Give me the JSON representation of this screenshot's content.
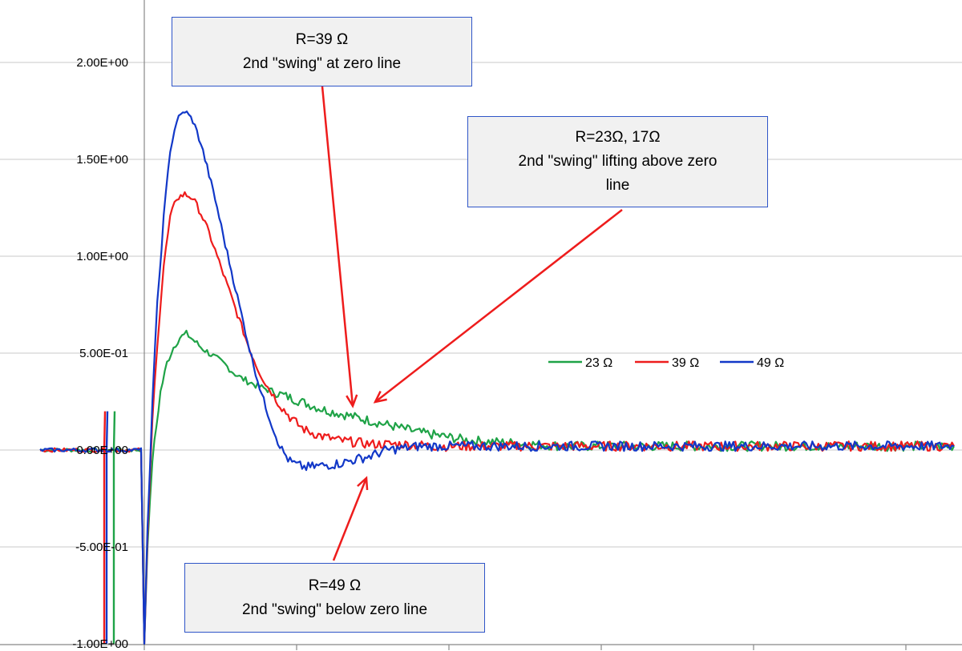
{
  "chart_data": {
    "type": "line",
    "title": "",
    "xlabel": "",
    "ylabel": "",
    "ylim": [
      -1.0,
      2.3
    ],
    "y_ticks": [
      "2.00E+00",
      "1.50E+00",
      "1.00E+00",
      "5.00E-01",
      "0.00E+00",
      "-5.00E-01",
      "-1.00E+00"
    ],
    "y_tick_values": [
      2.0,
      1.5,
      1.0,
      0.5,
      0.0,
      -0.5,
      -1.0
    ],
    "grid": "horizontal",
    "legend_position": "right",
    "colors": {
      "green": "#1fa347",
      "red": "#ee1c1c",
      "blue": "#1238c8",
      "arrow": "#ee1c1c",
      "box_border": "#2f55c8"
    },
    "series": [
      {
        "name": "23 Ω",
        "color": "#1fa347",
        "x": [
          0,
          2,
          5,
          10,
          14,
          18,
          22,
          26,
          30,
          35,
          40,
          45,
          50,
          55,
          60,
          65,
          70,
          80,
          90,
          100,
          110,
          120,
          130,
          140,
          150,
          160,
          170,
          185,
          200,
          220,
          240,
          260,
          290,
          320,
          360,
          400,
          450,
          500
        ],
        "y": [
          -1.0,
          -0.5,
          -0.05,
          0.3,
          0.45,
          0.53,
          0.58,
          0.6,
          0.57,
          0.53,
          0.5,
          0.47,
          0.44,
          0.4,
          0.37,
          0.35,
          0.33,
          0.3,
          0.27,
          0.24,
          0.21,
          0.19,
          0.17,
          0.15,
          0.13,
          0.11,
          0.09,
          0.07,
          0.05,
          0.04,
          0.03,
          0.02,
          0.02,
          0.02,
          0.02,
          0.02,
          0.02,
          0.02
        ]
      },
      {
        "name": "39 Ω",
        "color": "#ee1c1c",
        "x": [
          0,
          2,
          5,
          8,
          12,
          16,
          20,
          25,
          30,
          35,
          40,
          45,
          50,
          55,
          60,
          65,
          70,
          75,
          80,
          85,
          90,
          95,
          100,
          110,
          120,
          130,
          140,
          160,
          180,
          200,
          240,
          280,
          320,
          360,
          400,
          450,
          500
        ],
        "y": [
          -1.0,
          -0.45,
          0.15,
          0.55,
          0.95,
          1.2,
          1.3,
          1.32,
          1.3,
          1.22,
          1.12,
          1.0,
          0.88,
          0.76,
          0.64,
          0.52,
          0.42,
          0.34,
          0.28,
          0.22,
          0.17,
          0.13,
          0.1,
          0.07,
          0.05,
          0.04,
          0.03,
          0.03,
          0.02,
          0.02,
          0.02,
          0.02,
          0.02,
          0.02,
          0.02,
          0.02,
          0.02
        ]
      },
      {
        "name": "49 Ω",
        "color": "#1238c8",
        "x": [
          0,
          2,
          5,
          8,
          12,
          16,
          20,
          25,
          30,
          35,
          40,
          45,
          50,
          55,
          60,
          65,
          70,
          75,
          80,
          85,
          90,
          95,
          100,
          110,
          120,
          130,
          140,
          150,
          160,
          170,
          180,
          200,
          240,
          280,
          320,
          360,
          400,
          450,
          500
        ],
        "y": [
          -1.0,
          -0.4,
          0.25,
          0.75,
          1.2,
          1.55,
          1.7,
          1.75,
          1.7,
          1.58,
          1.42,
          1.25,
          1.06,
          0.88,
          0.7,
          0.52,
          0.36,
          0.22,
          0.1,
          0.0,
          -0.06,
          -0.08,
          -0.09,
          -0.08,
          -0.07,
          -0.05,
          -0.03,
          0.0,
          0.01,
          0.02,
          0.02,
          0.02,
          0.02,
          0.02,
          0.02,
          0.02,
          0.02,
          0.02,
          0.02
        ]
      }
    ],
    "annotations": [
      {
        "lines": [
          "R=39 Ω",
          "2nd  \"swing\"  at zero line"
        ]
      },
      {
        "lines": [
          "R=23Ω,  17Ω",
          "2nd  \"swing\"  lifting above zero",
          "line"
        ]
      },
      {
        "lines": [
          "R=49 Ω",
          "2nd  \"swing\"  below zero line"
        ]
      }
    ]
  }
}
